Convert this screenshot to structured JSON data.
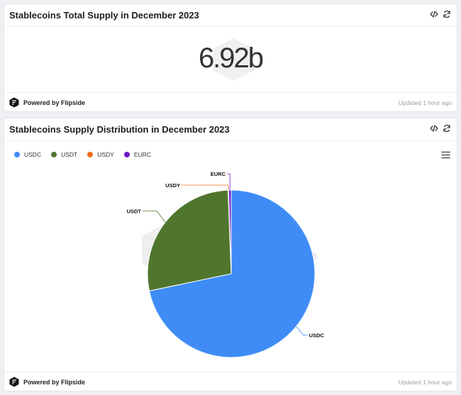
{
  "cards": [
    {
      "title": "Stablecoins Total Supply in December 2023",
      "value": "6.92b",
      "footer": {
        "brand": "Powered by Flipside",
        "updated": "Updated 1 hour ago"
      }
    },
    {
      "title": "Stablecoins Supply Distribution in December 2023",
      "footer": {
        "brand": "Powered by Flipside",
        "updated": "Updated 1 hour ago"
      }
    }
  ],
  "icons": {
    "embed": "code-icon",
    "refresh": "refresh-icon",
    "menu": "hamburger-menu-icon",
    "brand": "flipside-logo-icon"
  },
  "chart_data": {
    "type": "pie",
    "title": "Stablecoins Supply Distribution in December 2023",
    "legend_position": "top-left",
    "series": [
      {
        "name": "USDC",
        "value": 71.7,
        "color": "#3f8cf7"
      },
      {
        "name": "USDT",
        "value": 27.7,
        "color": "#50762e"
      },
      {
        "name": "USDY",
        "value": 0.1,
        "color": "#ed6c1c"
      },
      {
        "name": "EURC",
        "value": 0.5,
        "color": "#6f1cc4"
      }
    ],
    "data_labels": [
      "USDC",
      "USDT",
      "USDY",
      "EURC"
    ],
    "value_unit": "percent of total supply (estimated)"
  }
}
